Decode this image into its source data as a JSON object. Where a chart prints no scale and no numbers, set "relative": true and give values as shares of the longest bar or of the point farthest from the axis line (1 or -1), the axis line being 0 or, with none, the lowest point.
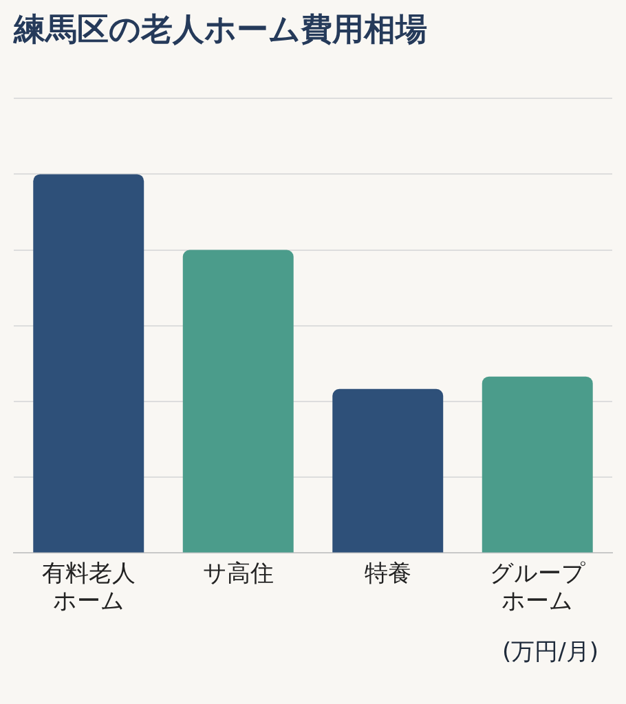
{
  "chart_data": {
    "type": "bar",
    "title": "練馬区の老人ホーム費用相場",
    "categories": [
      "有料老人ホーム",
      "サ高住",
      "特養",
      "グループホーム"
    ],
    "values": [
      1,
      0.8,
      0.433,
      0.466
    ],
    "colors": [
      "#2e5079",
      "#4b9c8b",
      "#2e5079",
      "#4b9c8b"
    ],
    "relative": true,
    "grid": "y",
    "legend": false,
    "annotations": [
      "(万円/月)"
    ]
  }
}
